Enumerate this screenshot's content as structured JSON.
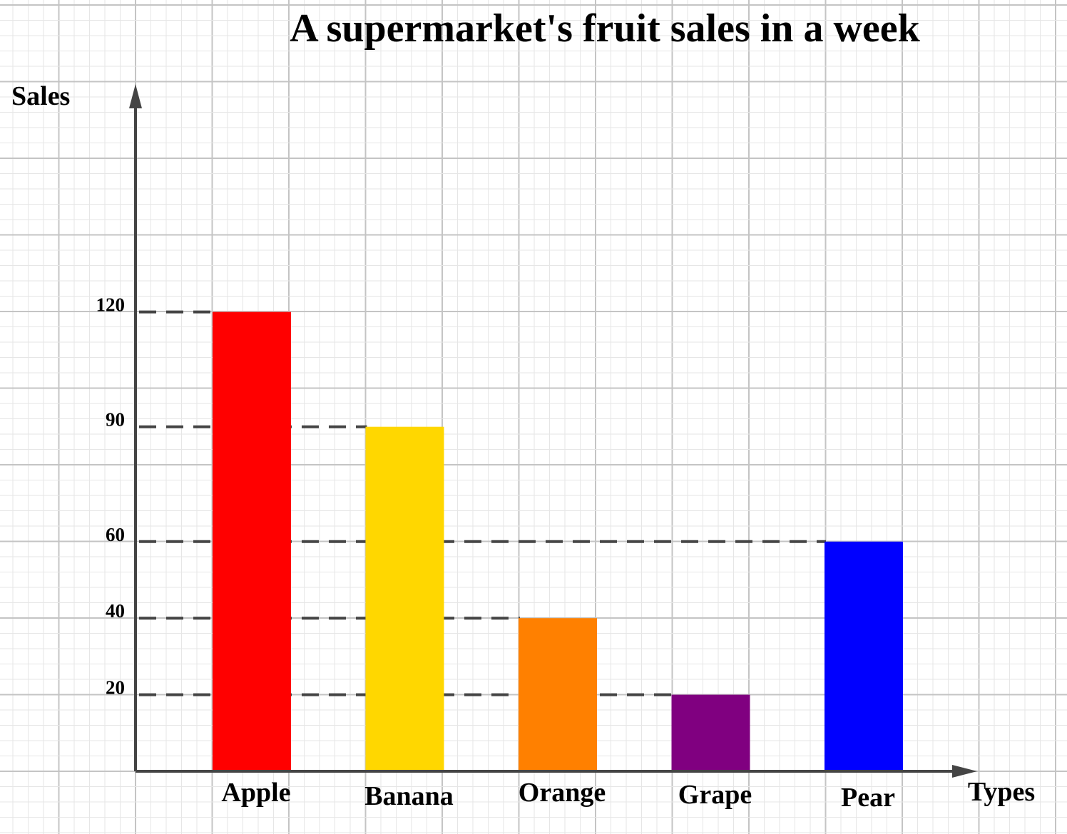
{
  "chart_data": {
    "type": "bar",
    "title": "A supermarket's fruit sales in a week",
    "xlabel": "Types",
    "ylabel": "Sales",
    "categories": [
      "Apple",
      "Banana",
      "Orange",
      "Grape",
      "Pear"
    ],
    "values": [
      120,
      90,
      40,
      20,
      60
    ],
    "bar_colors": [
      "#ff0000",
      "#ffd700",
      "#ff8000",
      "#800080",
      "#0000ff"
    ],
    "yticks": [
      {
        "value": 120,
        "label": "120"
      },
      {
        "value": 90,
        "label": "90"
      },
      {
        "value": 60,
        "label": "60"
      },
      {
        "value": 40,
        "label": "40"
      },
      {
        "value": 20,
        "label": "20"
      }
    ],
    "ylim": [
      0,
      240
    ],
    "grid": true,
    "legend": "none",
    "guide_lines": "dashed"
  }
}
